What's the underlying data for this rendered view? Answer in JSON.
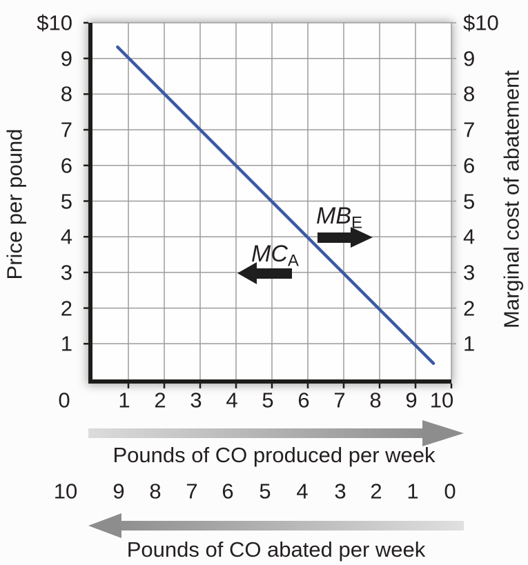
{
  "colors": {
    "line": "#3c59a4",
    "grid": "#9b9b9b",
    "ink": "#231f20",
    "axis_black": "#1d1d1b",
    "gray_arrow": "#8d8d8d",
    "black_arrow": "#1e1e1e"
  },
  "chart_data": {
    "type": "line",
    "title": "",
    "xlim": [
      0,
      10
    ],
    "ylim": [
      0,
      10
    ],
    "grid": true,
    "y_axis_left": {
      "label": "Price per pound",
      "ticks": [
        "$10",
        "9",
        "8",
        "7",
        "6",
        "5",
        "4",
        "3",
        "2",
        "1"
      ]
    },
    "y_axis_right": {
      "label": "Marginal cost of abatement",
      "ticks": [
        "$10",
        "9",
        "8",
        "7",
        "6",
        "5",
        "4",
        "3",
        "2",
        "1"
      ]
    },
    "x_axis_produced": {
      "label": "Pounds of CO produced per week",
      "ticks": [
        "0",
        "1",
        "2",
        "3",
        "4",
        "5",
        "6",
        "7",
        "8",
        "9",
        "10"
      ],
      "arrow_direction": "right"
    },
    "x_axis_abated": {
      "label": "Pounds of CO abated per week",
      "ticks": [
        "10",
        "9",
        "8",
        "7",
        "6",
        "5",
        "4",
        "3",
        "2",
        "1",
        "0"
      ],
      "arrow_direction": "left"
    },
    "series": [
      {
        "name": "MB_E / MC_A line",
        "color": "#3c59a4",
        "points": [
          [
            0.7,
            9.32
          ],
          [
            9.5,
            0.45
          ]
        ]
      }
    ],
    "annotations": [
      {
        "text": "MB",
        "sub": "E",
        "arrow": "right"
      },
      {
        "text": "MC",
        "sub": "A",
        "arrow": "left"
      }
    ]
  }
}
